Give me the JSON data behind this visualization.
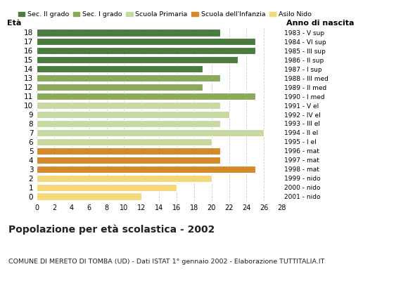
{
  "ages": [
    18,
    17,
    16,
    15,
    14,
    13,
    12,
    11,
    10,
    9,
    8,
    7,
    6,
    5,
    4,
    3,
    2,
    1,
    0
  ],
  "values": [
    21,
    25,
    25,
    23,
    19,
    21,
    19,
    25,
    21,
    22,
    21,
    26,
    20,
    21,
    21,
    25,
    20,
    16,
    12
  ],
  "right_labels": [
    "1983 - V sup",
    "1984 - VI sup",
    "1985 - III sup",
    "1986 - II sup",
    "1987 - I sup",
    "1988 - III med",
    "1989 - II med",
    "1990 - I med",
    "1991 - V el",
    "1992 - IV el",
    "1993 - III el",
    "1994 - II el",
    "1995 - I el",
    "1996 - mat",
    "1997 - mat",
    "1998 - mat",
    "1999 - nido",
    "2000 - nido",
    "2001 - nido"
  ],
  "bar_colors": [
    "#4a7c3f",
    "#4a7c3f",
    "#4a7c3f",
    "#4a7c3f",
    "#4a7c3f",
    "#8aaa5a",
    "#8aaa5a",
    "#8aaa5a",
    "#c5d9a0",
    "#c5d9a0",
    "#c5d9a0",
    "#c5d9a0",
    "#c5d9a0",
    "#d4892a",
    "#d4892a",
    "#d4892a",
    "#f5d87a",
    "#f5d87a",
    "#f5d87a"
  ],
  "legend_labels": [
    "Sec. II grado",
    "Sec. I grado",
    "Scuola Primaria",
    "Scuola dell'Infanzia",
    "Asilo Nido"
  ],
  "legend_colors": [
    "#4a7c3f",
    "#8aaa5a",
    "#c5d9a0",
    "#d4892a",
    "#f5d87a"
  ],
  "title": "Popolazione per età scolastica - 2002",
  "subtitle": "COMUNE DI MERETO DI TOMBA (UD) - Dati ISTAT 1° gennaio 2002 - Elaborazione TUTTITALIA.IT",
  "xlabel_eta": "Età",
  "xlabel_anno": "Anno di nascita",
  "xlim": [
    0,
    28
  ],
  "xticks": [
    0,
    2,
    4,
    6,
    8,
    10,
    12,
    14,
    16,
    18,
    20,
    22,
    24,
    26,
    28
  ],
  "background_color": "#ffffff",
  "grid_color": "#cccccc"
}
